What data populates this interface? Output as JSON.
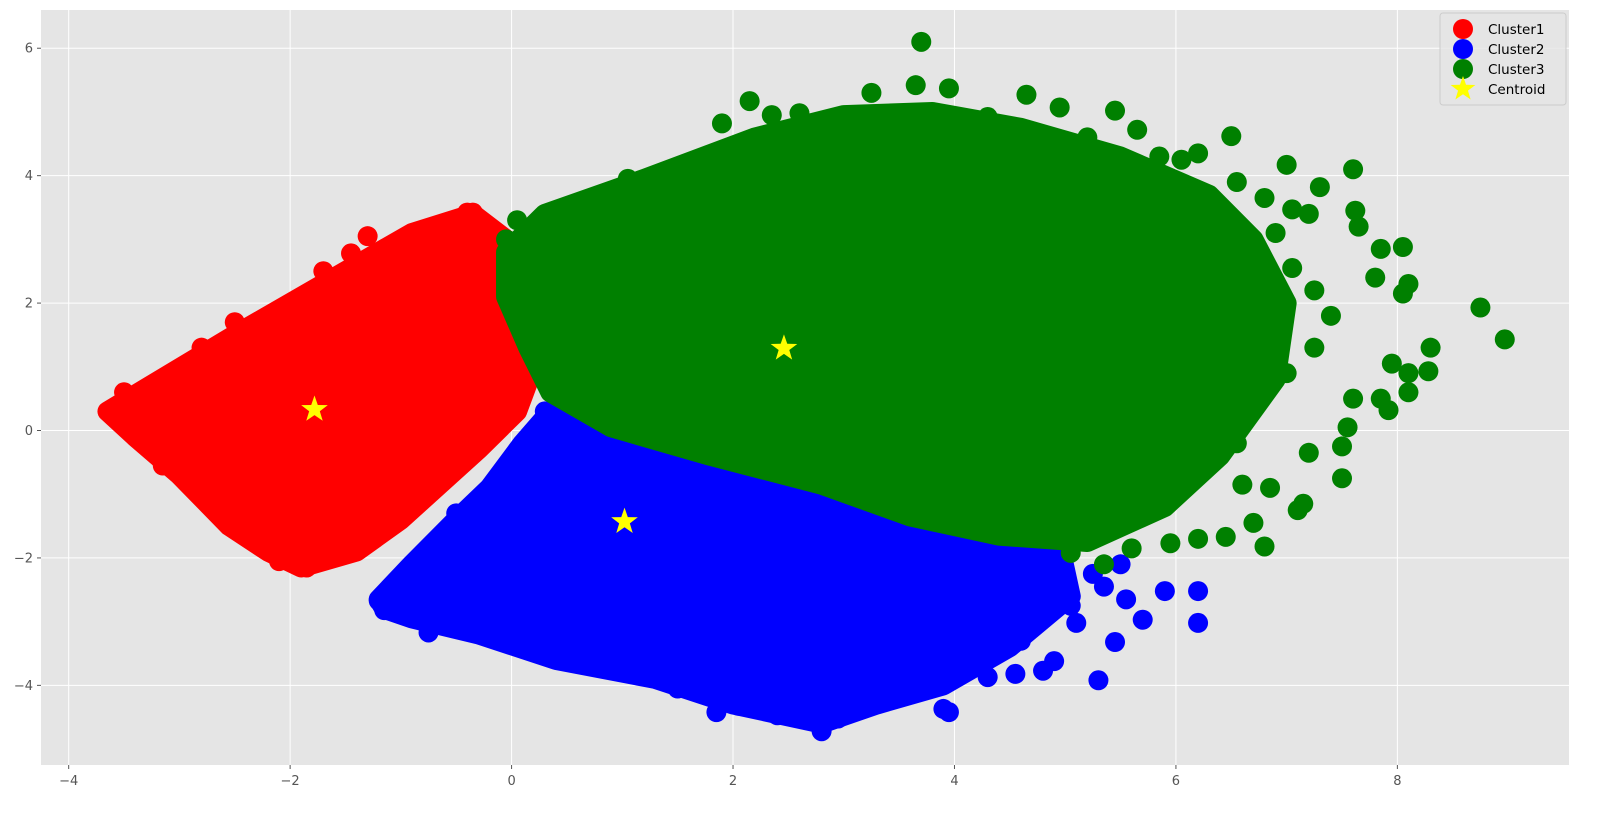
{
  "chart_data": {
    "type": "scatter",
    "title": "",
    "xlabel": "",
    "ylabel": "",
    "xlim": [
      -4.25,
      9.55
    ],
    "ylim": [
      -5.25,
      6.6
    ],
    "x_ticks": [
      -4,
      -2,
      0,
      2,
      4,
      6,
      8
    ],
    "y_ticks": [
      -4,
      -2,
      0,
      2,
      4,
      6
    ],
    "x_tick_labels": [
      "−4",
      "−2",
      "0",
      "2",
      "4",
      "6",
      "8"
    ],
    "y_tick_labels": [
      "−4",
      "−2",
      "0",
      "2",
      "4",
      "6"
    ],
    "grid": true,
    "legend_position": "top-right",
    "series": [
      {
        "name": "Cluster1",
        "color": "#ff0000",
        "marker": "circle",
        "region": [
          [
            -3.65,
            0.3
          ],
          [
            -2.5,
            1.5
          ],
          [
            -1.5,
            2.5
          ],
          [
            -0.9,
            3.1
          ],
          [
            -0.35,
            3.4
          ],
          [
            -0.05,
            3.0
          ],
          [
            0.05,
            2.3
          ],
          [
            0.2,
            1.0
          ],
          [
            0.05,
            0.3
          ],
          [
            -0.3,
            -0.3
          ],
          [
            -1.0,
            -1.4
          ],
          [
            -1.4,
            -1.9
          ],
          [
            -1.9,
            -2.15
          ],
          [
            -2.2,
            -1.9
          ],
          [
            -2.55,
            -1.5
          ],
          [
            -3.0,
            -0.7
          ],
          [
            -3.4,
            -0.1
          ]
        ],
        "points": [
          [
            -1.3,
            3.05
          ],
          [
            -0.4,
            3.42
          ],
          [
            -0.35,
            3.42
          ],
          [
            -1.45,
            2.78
          ],
          [
            -1.7,
            2.5
          ],
          [
            -2.1,
            -2.05
          ],
          [
            -2.4,
            -1.6
          ],
          [
            -1.85,
            -2.15
          ],
          [
            -3.15,
            -0.55
          ],
          [
            -2.7,
            -0.95
          ],
          [
            -0.1,
            0.55
          ],
          [
            0.1,
            0.85
          ],
          [
            -0.55,
            -0.45
          ],
          [
            -0.9,
            2.95
          ],
          [
            -2.8,
            1.3
          ],
          [
            -2.5,
            1.7
          ],
          [
            -3.5,
            0.6
          ],
          [
            -1.2,
            -1.6
          ],
          [
            -0.2,
            0.3
          ],
          [
            -1.0,
            -1.3
          ],
          [
            -0.7,
            -0.6
          ]
        ]
      },
      {
        "name": "Cluster2",
        "color": "#0000ff",
        "marker": "circle",
        "region": [
          [
            0.35,
            0.3
          ],
          [
            0.8,
            0.1
          ],
          [
            1.5,
            -0.2
          ],
          [
            2.6,
            -0.6
          ],
          [
            3.6,
            -1.0
          ],
          [
            4.6,
            -1.5
          ],
          [
            4.95,
            -1.8
          ],
          [
            5.05,
            -2.6
          ],
          [
            4.5,
            -3.4
          ],
          [
            3.9,
            -4.0
          ],
          [
            3.3,
            -4.3
          ],
          [
            2.8,
            -4.6
          ],
          [
            2.0,
            -4.3
          ],
          [
            1.3,
            -3.9
          ],
          [
            0.4,
            -3.6
          ],
          [
            -0.3,
            -3.2
          ],
          [
            -0.9,
            -2.95
          ],
          [
            -1.15,
            -2.8
          ],
          [
            -1.2,
            -2.65
          ],
          [
            -0.9,
            -2.1
          ],
          [
            -0.5,
            -1.4
          ],
          [
            -0.2,
            -0.9
          ],
          [
            0.1,
            -0.2
          ]
        ],
        "points": [
          [
            5.3,
            -3.92
          ],
          [
            5.7,
            -2.97
          ],
          [
            5.9,
            -2.52
          ],
          [
            6.2,
            -2.52
          ],
          [
            6.2,
            -3.02
          ],
          [
            5.45,
            -3.32
          ],
          [
            5.1,
            -3.02
          ],
          [
            4.9,
            -3.62
          ],
          [
            4.8,
            -3.77
          ],
          [
            4.55,
            -3.82
          ],
          [
            4.3,
            -3.87
          ],
          [
            3.9,
            -4.37
          ],
          [
            3.95,
            -4.42
          ],
          [
            2.8,
            -4.72
          ],
          [
            2.95,
            -4.52
          ],
          [
            2.4,
            -4.47
          ],
          [
            1.85,
            -4.42
          ],
          [
            2.05,
            -4.32
          ],
          [
            -0.75,
            -3.17
          ],
          [
            -1.2,
            -2.67
          ],
          [
            -1.15,
            -2.82
          ],
          [
            5.55,
            -2.65
          ],
          [
            5.25,
            -2.25
          ],
          [
            5.05,
            -2.75
          ],
          [
            5.35,
            -2.45
          ],
          [
            3.6,
            -3.8
          ],
          [
            1.5,
            -4.05
          ],
          [
            4.6,
            -3.3
          ],
          [
            5.5,
            -2.1
          ],
          [
            0.3,
            0.3
          ],
          [
            -0.5,
            -1.3
          ]
        ]
      },
      {
        "name": "Cluster3",
        "color": "#008000",
        "marker": "circle",
        "region": [
          [
            -0.05,
            2.8
          ],
          [
            0.3,
            3.4
          ],
          [
            1.2,
            3.95
          ],
          [
            2.2,
            4.6
          ],
          [
            3.0,
            4.95
          ],
          [
            3.8,
            5.0
          ],
          [
            4.6,
            4.75
          ],
          [
            5.5,
            4.3
          ],
          [
            6.3,
            3.7
          ],
          [
            6.7,
            3.0
          ],
          [
            7.0,
            2.0
          ],
          [
            6.9,
            0.8
          ],
          [
            6.4,
            -0.4
          ],
          [
            5.9,
            -1.2
          ],
          [
            5.2,
            -1.75
          ],
          [
            4.4,
            -1.65
          ],
          [
            3.6,
            -1.35
          ],
          [
            2.8,
            -0.85
          ],
          [
            1.8,
            -0.4
          ],
          [
            0.9,
            0.05
          ],
          [
            0.35,
            0.6
          ],
          [
            0.15,
            1.3
          ],
          [
            -0.05,
            2.1
          ]
        ],
        "points": [
          [
            3.7,
            6.1
          ],
          [
            3.65,
            5.42
          ],
          [
            3.95,
            5.37
          ],
          [
            2.15,
            5.17
          ],
          [
            4.65,
            5.27
          ],
          [
            4.95,
            5.07
          ],
          [
            5.45,
            5.02
          ],
          [
            5.65,
            4.72
          ],
          [
            6.5,
            4.62
          ],
          [
            7.0,
            4.17
          ],
          [
            7.6,
            4.1
          ],
          [
            7.3,
            3.82
          ],
          [
            7.62,
            3.45
          ],
          [
            7.65,
            3.2
          ],
          [
            7.85,
            2.85
          ],
          [
            8.05,
            2.88
          ],
          [
            8.1,
            2.3
          ],
          [
            8.05,
            2.15
          ],
          [
            7.8,
            2.4
          ],
          [
            8.75,
            1.93
          ],
          [
            8.97,
            1.43
          ],
          [
            8.3,
            1.3
          ],
          [
            8.28,
            0.93
          ],
          [
            8.1,
            0.6
          ],
          [
            7.92,
            0.32
          ],
          [
            7.55,
            0.05
          ],
          [
            7.5,
            -0.25
          ],
          [
            7.5,
            -0.75
          ],
          [
            7.1,
            -1.25
          ],
          [
            6.8,
            -1.82
          ],
          [
            6.7,
            -1.45
          ],
          [
            6.45,
            -1.67
          ],
          [
            6.2,
            -1.7
          ],
          [
            5.95,
            -1.77
          ],
          [
            5.6,
            -1.85
          ],
          [
            5.35,
            -2.1
          ],
          [
            5.05,
            -1.92
          ],
          [
            7.15,
            -1.15
          ],
          [
            6.85,
            -0.9
          ],
          [
            7.2,
            -0.35
          ],
          [
            6.6,
            -0.85
          ],
          [
            7.6,
            0.5
          ],
          [
            7.85,
            0.5
          ],
          [
            7.0,
            0.9
          ],
          [
            7.25,
            1.3
          ],
          [
            7.4,
            1.8
          ],
          [
            7.25,
            2.2
          ],
          [
            7.05,
            2.55
          ],
          [
            6.8,
            3.65
          ],
          [
            6.9,
            3.1
          ],
          [
            7.05,
            3.47
          ],
          [
            7.2,
            3.4
          ],
          [
            6.55,
            3.9
          ],
          [
            6.2,
            4.35
          ],
          [
            6.05,
            4.25
          ],
          [
            5.85,
            4.3
          ],
          [
            2.35,
            4.95
          ],
          [
            2.6,
            4.98
          ],
          [
            3.25,
            5.3
          ],
          [
            3.55,
            4.98
          ],
          [
            4.3,
            4.92
          ],
          [
            5.2,
            4.6
          ],
          [
            1.9,
            4.82
          ],
          [
            1.05,
            3.95
          ],
          [
            0.05,
            3.3
          ],
          [
            -0.05,
            3.0
          ],
          [
            7.95,
            1.05
          ],
          [
            8.1,
            0.9
          ],
          [
            6.6,
            2.2
          ],
          [
            6.5,
            1.1
          ],
          [
            6.2,
            -0.5
          ],
          [
            6.55,
            -0.2
          ]
        ]
      },
      {
        "name": "Centroid",
        "color": "#ffff00",
        "marker": "star",
        "points": [
          [
            -1.78,
            0.33
          ],
          [
            1.02,
            -1.43
          ],
          [
            2.46,
            1.29
          ]
        ]
      }
    ]
  }
}
